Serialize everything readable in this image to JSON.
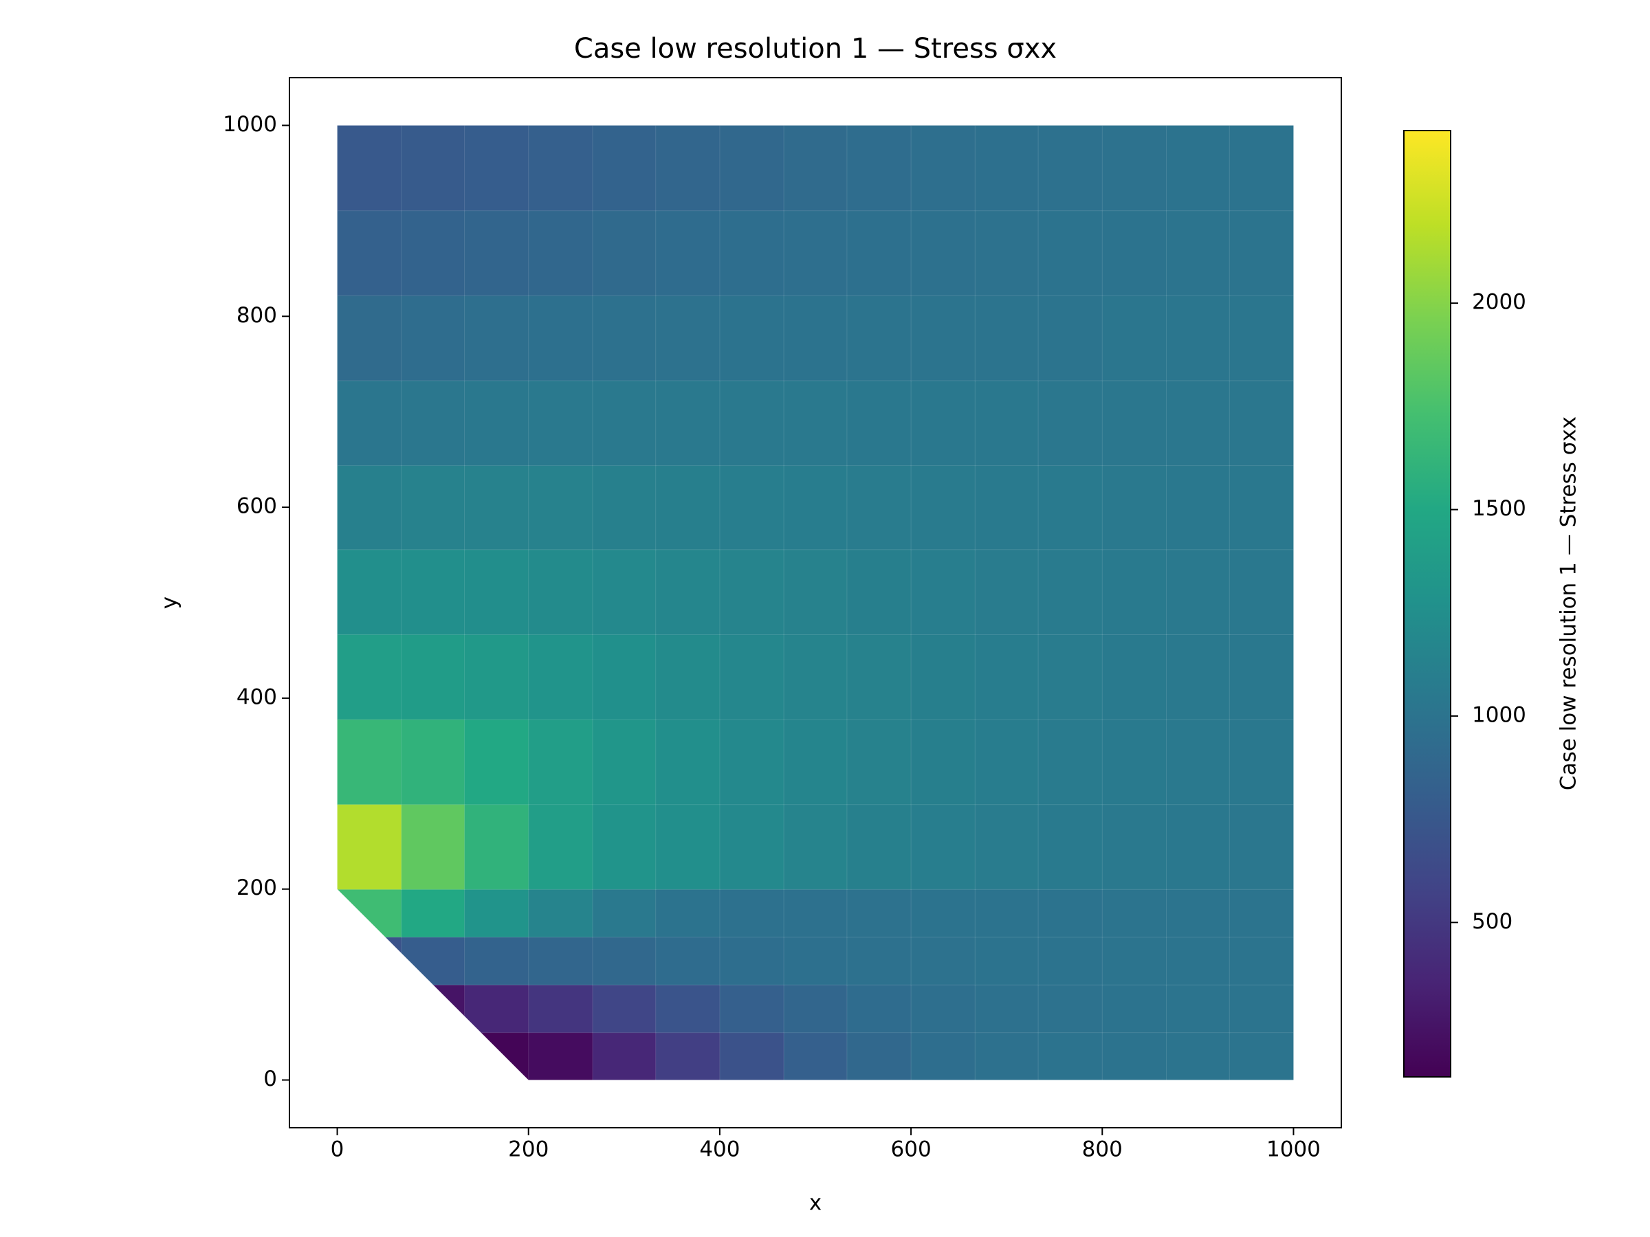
{
  "chart_data": {
    "type": "tripcolor",
    "title": "Case low resolution 1 — Stress σxx",
    "xlabel": "x",
    "ylabel": "y",
    "colorbar_label": "Case low resolution 1 — Stress σxx",
    "colormap": "viridis",
    "xlim": [
      -50,
      1050
    ],
    "ylim": [
      -50,
      1050
    ],
    "xticks": [
      0,
      200,
      400,
      600,
      800,
      1000
    ],
    "yticks": [
      0,
      200,
      400,
      600,
      800,
      1000
    ],
    "clim": [
      126,
      2418
    ],
    "cticks": [
      500,
      1000,
      1500,
      2000
    ],
    "domain": [
      [
        0,
        200
      ],
      [
        200,
        0
      ],
      [
        1000,
        0
      ],
      [
        1000,
        1000
      ],
      [
        0,
        1000
      ]
    ],
    "x_edges": [
      0,
      67,
      133,
      200,
      267,
      333,
      400,
      467,
      533,
      600,
      667,
      733,
      800,
      867,
      933,
      1000
    ],
    "y_edges": [
      0,
      50,
      100,
      150,
      200,
      289,
      378,
      467,
      556,
      644,
      733,
      822,
      911,
      1000
    ],
    "values": [
      [
        null,
        null,
        150,
        200,
        380,
        550,
        700,
        820,
        900,
        950,
        980,
        1000,
        1000,
        1010,
        1010
      ],
      [
        null,
        250,
        380,
        480,
        600,
        720,
        820,
        880,
        930,
        960,
        980,
        990,
        1000,
        1010,
        1010
      ],
      [
        700,
        800,
        850,
        880,
        900,
        930,
        950,
        970,
        980,
        990,
        1000,
        1000,
        1010,
        1010,
        1010
      ],
      [
        1700,
        1500,
        1300,
        1150,
        1050,
        1000,
        980,
        980,
        990,
        1000,
        1000,
        1000,
        1010,
        1010,
        1010
      ],
      [
        2150,
        1850,
        1600,
        1400,
        1300,
        1250,
        1200,
        1150,
        1120,
        1100,
        1080,
        1060,
        1050,
        1040,
        1030
      ],
      [
        1650,
        1600,
        1500,
        1400,
        1320,
        1250,
        1200,
        1160,
        1130,
        1110,
        1090,
        1070,
        1060,
        1050,
        1040
      ],
      [
        1400,
        1380,
        1350,
        1300,
        1260,
        1220,
        1180,
        1150,
        1130,
        1110,
        1090,
        1080,
        1060,
        1050,
        1040
      ],
      [
        1250,
        1250,
        1240,
        1220,
        1200,
        1170,
        1150,
        1130,
        1110,
        1100,
        1080,
        1070,
        1060,
        1050,
        1040
      ],
      [
        1120,
        1130,
        1130,
        1130,
        1120,
        1110,
        1100,
        1090,
        1080,
        1070,
        1060,
        1060,
        1050,
        1040,
        1040
      ],
      [
        1020,
        1030,
        1040,
        1050,
        1050,
        1050,
        1050,
        1050,
        1040,
        1040,
        1040,
        1030,
        1030,
        1030,
        1030
      ],
      [
        920,
        940,
        960,
        970,
        980,
        990,
        1000,
        1000,
        1010,
        1010,
        1010,
        1010,
        1020,
        1020,
        1020
      ],
      [
        830,
        850,
        870,
        890,
        910,
        930,
        950,
        960,
        970,
        980,
        990,
        1000,
        1000,
        1010,
        1010
      ],
      [
        760,
        780,
        800,
        820,
        850,
        880,
        900,
        920,
        940,
        960,
        970,
        980,
        990,
        1000,
        1000
      ]
    ]
  }
}
